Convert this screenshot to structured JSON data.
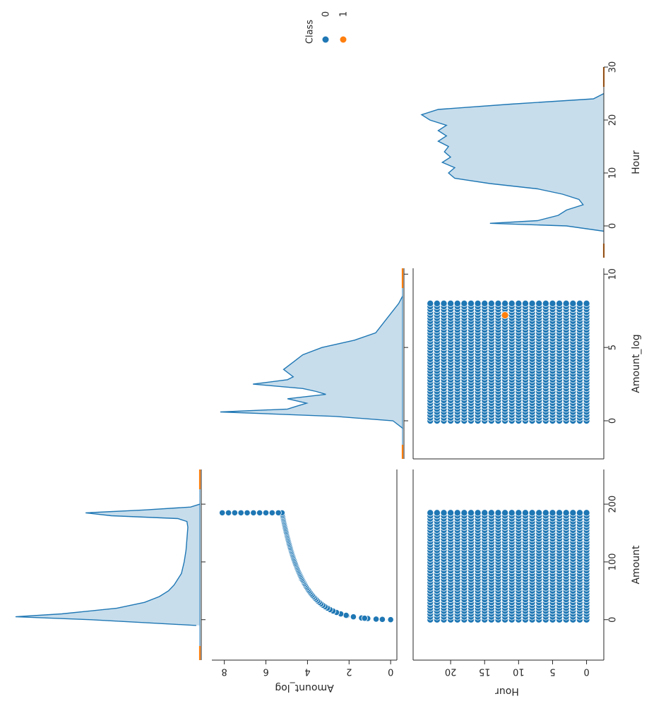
{
  "chart_data": {
    "type": "pairplot",
    "variables": [
      "Amount",
      "Amount_log",
      "Hour"
    ],
    "hue": "Class",
    "colors": {
      "0": "#1f77b4",
      "1": "#ff7f0e"
    },
    "legend": {
      "title": "Class",
      "entries": [
        "0",
        "1"
      ],
      "placement": "top-right"
    },
    "axes": {
      "Amount": {
        "label": "Amount",
        "range": [
          -70,
          260
        ],
        "ticks": [
          "0",
          "100",
          "200"
        ],
        "tick_values": [
          0,
          100,
          200
        ]
      },
      "Amount_log": {
        "label": "Amount_log",
        "range": [
          -2.6,
          10.4
        ],
        "ticks": [
          "0",
          "5",
          "10"
        ],
        "tick_values": [
          0,
          5,
          10
        ]
      },
      "Amount_log_y": {
        "label": "Amount_log",
        "range": [
          -0.3,
          8.6
        ],
        "ticks": [
          "0",
          "2",
          "4",
          "6",
          "8"
        ],
        "tick_values": [
          0,
          2,
          4,
          6,
          8
        ]
      },
      "Hour": {
        "label": "Hour",
        "range": [
          -6,
          30
        ],
        "ticks": [
          "0",
          "10",
          "20",
          "30"
        ],
        "tick_values": [
          0,
          10,
          20,
          30
        ]
      },
      "Hour_y": {
        "label": "Hour",
        "range": [
          -1.5,
          25
        ],
        "ticks": [
          "0",
          "5",
          "10",
          "15",
          "20"
        ],
        "tick_values": [
          0,
          5,
          10,
          15,
          20
        ]
      }
    },
    "diag": {
      "Amount": {
        "x": [
          -10,
          0,
          5,
          10,
          20,
          30,
          40,
          50,
          60,
          80,
          100,
          120,
          140,
          160,
          170,
          175,
          180,
          185,
          190,
          195,
          200
        ],
        "density": [
          0.02,
          0.6,
          1.0,
          0.75,
          0.45,
          0.3,
          0.22,
          0.17,
          0.14,
          0.1,
          0.085,
          0.075,
          0.07,
          0.065,
          0.07,
          0.12,
          0.48,
          0.62,
          0.3,
          0.05,
          0.0
        ]
      },
      "Amount_log": {
        "x": [
          -0.5,
          0,
          0.3,
          0.6,
          0.8,
          1.0,
          1.2,
          1.5,
          1.8,
          2.0,
          2.2,
          2.5,
          2.8,
          3.0,
          3.5,
          4.0,
          4.5,
          5.0,
          5.5,
          6.0,
          7.0,
          8.0,
          8.5
        ],
        "density": [
          0.0,
          0.05,
          0.35,
          0.95,
          0.6,
          0.55,
          0.5,
          0.6,
          0.4,
          0.45,
          0.52,
          0.78,
          0.6,
          0.57,
          0.62,
          0.57,
          0.52,
          0.42,
          0.25,
          0.14,
          0.08,
          0.02,
          0.0
        ]
      },
      "Hour": {
        "x": [
          -1,
          0,
          0.5,
          1,
          2,
          3,
          4,
          5,
          6,
          7,
          8,
          9,
          10,
          11,
          12,
          13,
          14,
          15,
          16,
          17,
          18,
          19,
          20,
          21,
          22,
          23,
          24,
          25
        ],
        "density": [
          0.0,
          0.18,
          0.55,
          0.32,
          0.22,
          0.18,
          0.1,
          0.12,
          0.2,
          0.32,
          0.55,
          0.72,
          0.75,
          0.72,
          0.78,
          0.74,
          0.77,
          0.75,
          0.8,
          0.76,
          0.8,
          0.76,
          0.84,
          0.88,
          0.8,
          0.45,
          0.05,
          0.0
        ]
      }
    },
    "scatter": {
      "Amount_vs_Amount_log": {
        "x": [
          0.5,
          1,
          2,
          3,
          5,
          7,
          10,
          15,
          20,
          30,
          40,
          50,
          60,
          70,
          80,
          90,
          100,
          110,
          120,
          130,
          140,
          150,
          160,
          170,
          180,
          185
        ],
        "y": [
          0.4,
          0.7,
          1.1,
          1.4,
          1.8,
          2.1,
          2.4,
          2.8,
          3.0,
          3.4,
          3.7,
          3.9,
          4.1,
          4.3,
          4.4,
          4.5,
          4.6,
          4.7,
          4.8,
          4.9,
          4.95,
          5.0,
          5.1,
          5.15,
          5.2,
          5.25
        ]
      },
      "Amount_vs_Amount_log_saturated": {
        "x": 185,
        "y": [
          5.4,
          5.7,
          6.0,
          6.3,
          6.6,
          6.9,
          7.2,
          7.5,
          7.8,
          8.1
        ]
      },
      "Amount_vs_Hour": {
        "x_range": [
          0,
          185
        ],
        "y_range": [
          0,
          23
        ],
        "grid": true
      },
      "Amount_log_vs_Hour": {
        "x_range": [
          0,
          8
        ],
        "y_range": [
          0,
          23
        ],
        "grid": true,
        "class1_point": {
          "x": 7.2,
          "y": 12
        }
      }
    }
  }
}
